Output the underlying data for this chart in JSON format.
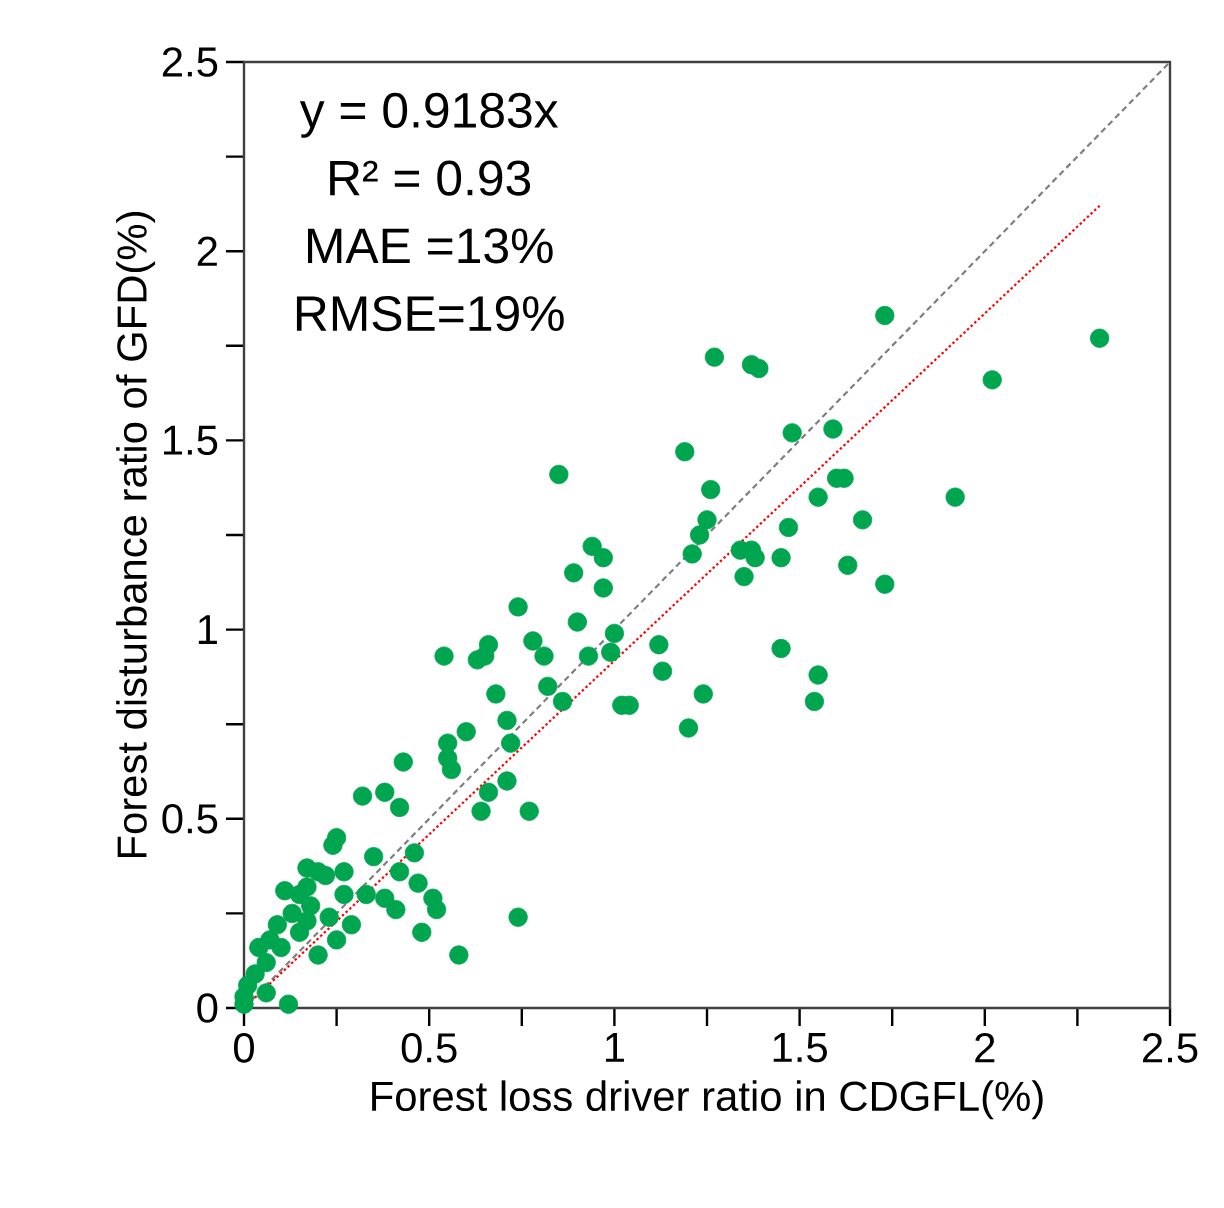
{
  "chart_data": {
    "type": "scatter",
    "xlabel": "Forest loss driver ratio in CDGFL(%)",
    "ylabel": "Forest disturbance ratio of GFD(%)",
    "annotations": [
      "y = 0.9183x",
      "R² = 0.93",
      "MAE  =13%",
      "RMSE=19%"
    ],
    "xlim": [
      0,
      2.5
    ],
    "ylim": [
      0,
      2.5
    ],
    "xticks": [
      0,
      {
        "value": 0.25,
        "label": null
      },
      0.5,
      {
        "value": 0.75,
        "label": null
      },
      1,
      {
        "value": 1.25,
        "label": null
      },
      1.5,
      {
        "value": 1.75,
        "label": null
      },
      2,
      {
        "value": 2.25,
        "label": null
      },
      2.5
    ],
    "yticks": [
      0,
      {
        "value": 0.25,
        "label": null
      },
      0.5,
      {
        "value": 0.75,
        "label": null
      },
      1,
      {
        "value": 1.25,
        "label": null
      },
      1.5,
      {
        "value": 1.75,
        "label": null
      },
      2,
      {
        "value": 2.25,
        "label": null
      },
      2.5
    ],
    "grid": false,
    "legend": false,
    "series": [
      {
        "marker": "circle",
        "color": "#00a54f",
        "x": [
          1.73,
          2.31,
          2.02,
          1.27,
          1.37,
          1.39,
          1.19,
          1.48,
          1.59,
          1.6,
          1.62,
          1.26,
          1.55,
          1.92,
          0.85,
          1.25,
          1.23,
          1.47,
          1.67,
          0.94,
          0.97,
          1.21,
          1.34,
          1.37,
          1.38,
          1.45,
          0.89,
          0.97,
          1.35,
          1.63,
          1.73,
          0.9,
          1.0,
          0.93,
          0.99,
          1.12,
          1.13,
          1.45,
          1.55,
          1.24,
          1.54,
          1.02,
          1.04,
          1.2,
          0.86,
          0.74,
          0.54,
          0.63,
          0.66,
          0.65,
          0.78,
          0.81,
          0.68,
          0.82,
          0.71,
          0.6,
          0.55,
          0.55,
          0.56,
          0.72,
          0.43,
          0.71,
          0.66,
          0.77,
          0.64,
          0.38,
          0.32,
          0.42,
          0.25,
          0.24,
          0.74,
          0.58,
          0.48,
          0.51,
          0.52,
          0.47,
          0.46,
          0.41,
          0.35,
          0.38,
          0.42,
          0.33,
          0.29,
          0.27,
          0.17,
          0.2,
          0.11,
          0.15,
          0.22,
          0.18,
          0.13,
          0.09,
          0.07,
          0.04,
          0.06,
          0.03,
          0.01,
          0.0,
          0.12,
          0.2,
          0.25,
          0.15,
          0.1,
          0.17,
          0.23,
          0.27,
          0.17,
          0.06,
          0.0
        ],
        "values": [
          1.83,
          1.77,
          1.66,
          1.72,
          1.7,
          1.69,
          1.47,
          1.52,
          1.53,
          1.4,
          1.4,
          1.37,
          1.35,
          1.35,
          1.41,
          1.29,
          1.25,
          1.27,
          1.29,
          1.22,
          1.19,
          1.2,
          1.21,
          1.21,
          1.19,
          1.19,
          1.15,
          1.11,
          1.14,
          1.17,
          1.12,
          1.02,
          0.99,
          0.93,
          0.94,
          0.96,
          0.89,
          0.95,
          0.88,
          0.83,
          0.81,
          0.8,
          0.8,
          0.74,
          0.81,
          1.06,
          0.93,
          0.92,
          0.96,
          0.93,
          0.97,
          0.93,
          0.83,
          0.85,
          0.76,
          0.73,
          0.7,
          0.66,
          0.63,
          0.7,
          0.65,
          0.6,
          0.57,
          0.52,
          0.52,
          0.57,
          0.56,
          0.53,
          0.45,
          0.43,
          0.24,
          0.14,
          0.2,
          0.29,
          0.26,
          0.33,
          0.41,
          0.26,
          0.4,
          0.29,
          0.36,
          0.3,
          0.22,
          0.36,
          0.37,
          0.36,
          0.31,
          0.3,
          0.35,
          0.27,
          0.25,
          0.22,
          0.18,
          0.16,
          0.12,
          0.09,
          0.06,
          0.03,
          0.01,
          0.14,
          0.18,
          0.2,
          0.16,
          0.23,
          0.24,
          0.3,
          0.32,
          0.04,
          0.01
        ]
      },
      {
        "type": "line",
        "marker": "none",
        "line_style": "dashed",
        "color": "#7f7f7f",
        "x": [
          0,
          2.5
        ],
        "values": [
          0,
          2.5
        ]
      },
      {
        "type": "line",
        "marker": "none",
        "line_style": "dotted",
        "color": "#ff0000",
        "x": [
          0,
          2.31
        ],
        "values": [
          0,
          2.12
        ]
      }
    ]
  }
}
